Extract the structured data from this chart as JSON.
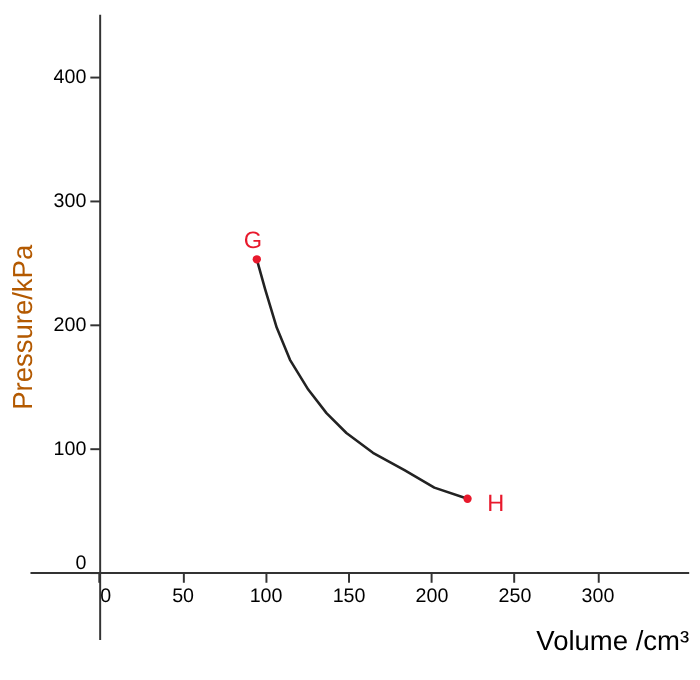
{
  "chart_data": {
    "type": "line",
    "xlabel": "Volume /cm³",
    "ylabel": "Pressure/kPa",
    "x": [
      95,
      100,
      107,
      115,
      126,
      137,
      149,
      165,
      184,
      202,
      222
    ],
    "series": [
      {
        "color": "#222222",
        "values": [
          252,
          228,
          197,
          171,
          147,
          128,
          112,
          96,
          82,
          68,
          59
        ]
      }
    ],
    "xlim": [
      -42,
      355
    ],
    "ylim": [
      -54,
      450
    ],
    "xticks": [
      0,
      50,
      100,
      150,
      200,
      250,
      300
    ],
    "yticks": [
      0,
      100,
      200,
      300,
      400
    ],
    "annotations": [
      {
        "text": "G",
        "x": 95,
        "y": 252
      },
      {
        "text": "H",
        "x": 222,
        "y": 59
      }
    ]
  }
}
